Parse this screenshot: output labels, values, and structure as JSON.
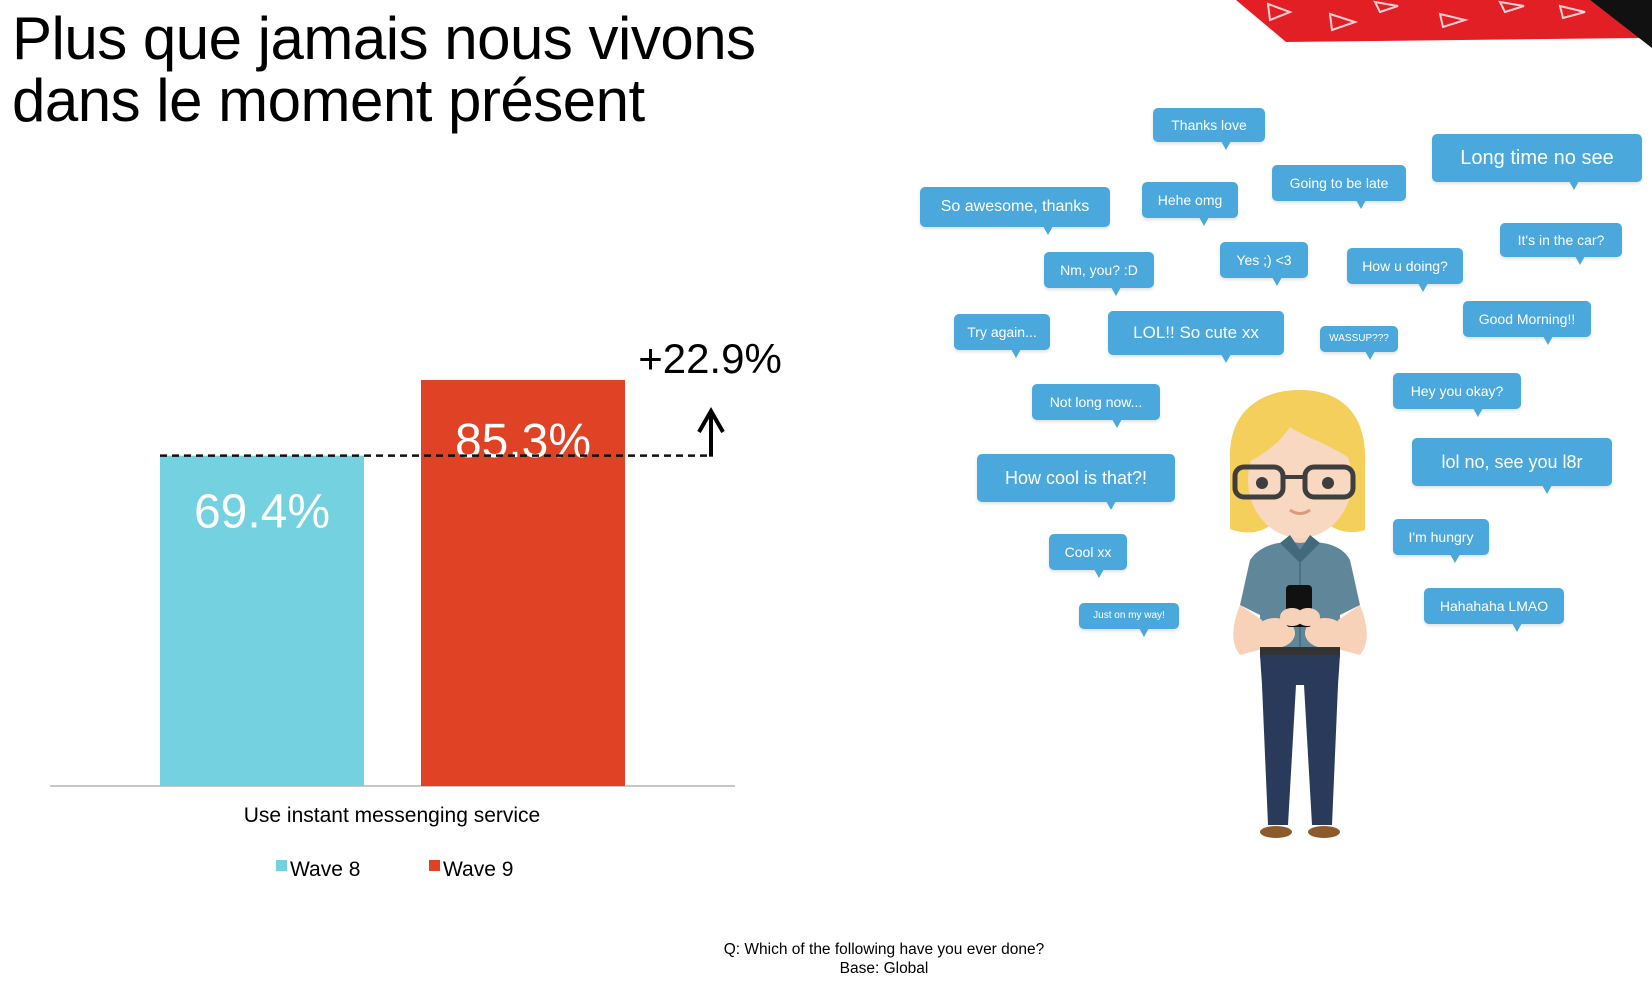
{
  "title": {
    "line1": "Plus que jamais nous vivons",
    "line2": "dans le moment présent"
  },
  "chart_data": {
    "type": "bar",
    "categories": [
      "Use instant messenging service"
    ],
    "series": [
      {
        "name": "Wave 8",
        "values": [
          69.4
        ],
        "label": "69.4%",
        "color": "#74d1e0"
      },
      {
        "name": "Wave 9",
        "values": [
          85.3
        ],
        "label": "85.3%",
        "color": "#e04226"
      }
    ],
    "ylim": [
      0,
      100
    ],
    "annotation": "+22.9%",
    "legend_position": "bottom",
    "grid": false
  },
  "footnote": {
    "question": "Q: Which of the following have you ever done?",
    "base": "Base: Global"
  },
  "bubbles": [
    {
      "text": "Thanks love"
    },
    {
      "text": "Long time no see"
    },
    {
      "text": "Going to be late"
    },
    {
      "text": "So awesome, thanks"
    },
    {
      "text": "Hehe omg"
    },
    {
      "text": "It's in the car?"
    },
    {
      "text": "Yes ;) <3"
    },
    {
      "text": "Nm, you? :D"
    },
    {
      "text": "How u doing?"
    },
    {
      "text": "Good Morning!!"
    },
    {
      "text": "Try again..."
    },
    {
      "text": "LOL!! So cute xx"
    },
    {
      "text": "WASSUP???"
    },
    {
      "text": "Hey you okay?"
    },
    {
      "text": "Not long now..."
    },
    {
      "text": "lol no, see you l8r"
    },
    {
      "text": "How cool is that?!"
    },
    {
      "text": "I'm hungry"
    },
    {
      "text": "Cool xx"
    },
    {
      "text": "Hahahaha LMAO"
    },
    {
      "text": "Just on my way!"
    }
  ],
  "colors": {
    "bubble": "#4aa8dc",
    "corner_red": "#e31f26",
    "corner_dark": "#000000"
  }
}
